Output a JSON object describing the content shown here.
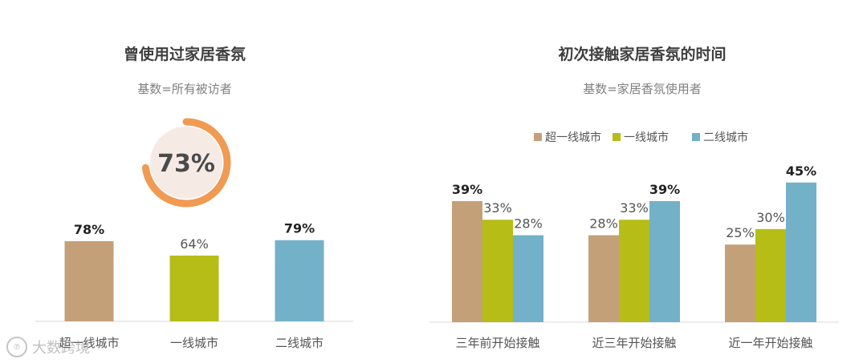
{
  "colors": {
    "super_tier1": "#c4a078",
    "tier1": "#b5bd16",
    "tier2": "#72b1c7",
    "donut": "#f09a52",
    "donut_bg": "#f6ebe4"
  },
  "chart_data": [
    {
      "type": "bar",
      "title": "曾使用过家居香氛",
      "subtitle": "基数=所有被访者",
      "donut_value": 73,
      "donut_label": "73%",
      "categories": [
        "超一线城市",
        "一线城市",
        "二线城市"
      ],
      "values": [
        78,
        64,
        79
      ],
      "value_labels": [
        "78%",
        "64%",
        "79%"
      ],
      "bold": [
        true,
        false,
        true
      ]
    },
    {
      "type": "bar",
      "title": "初次接触家居香氛的时间",
      "subtitle": "基数=家居香氛使用者",
      "legend_position": "top",
      "categories": [
        "三年前开始接触",
        "近三年开始接触",
        "近一年开始接触"
      ],
      "series": [
        {
          "name": "超一线城市",
          "values": [
            39,
            28,
            25
          ],
          "labels": [
            "39%",
            "28%",
            "25%"
          ],
          "bold": [
            true,
            false,
            false
          ]
        },
        {
          "name": "一线城市",
          "values": [
            33,
            33,
            30
          ],
          "labels": [
            "33%",
            "33%",
            "30%"
          ],
          "bold": [
            false,
            false,
            false
          ]
        },
        {
          "name": "二线城市",
          "values": [
            28,
            39,
            45
          ],
          "labels": [
            "28%",
            "39%",
            "45%"
          ],
          "bold": [
            false,
            true,
            true
          ]
        }
      ]
    }
  ],
  "watermark": "大数跨境"
}
